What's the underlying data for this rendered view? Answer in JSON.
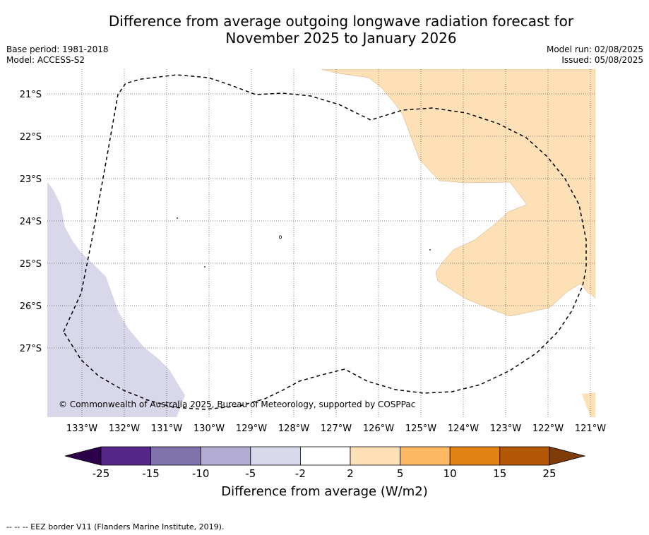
{
  "header": {
    "title_line1": "Difference from average outgoing longwave radiation forecast for",
    "title_line2": "November 2025 to January 2026",
    "base_period": "Base period: 1981-2018",
    "model": "Model: ACCESS-S2",
    "model_run": "Model run: 02/08/2025",
    "issued": "Issued: 05/08/2025"
  },
  "map": {
    "lon_labels": [
      "133°W",
      "132°W",
      "131°W",
      "130°W",
      "129°W",
      "128°W",
      "127°W",
      "126°W",
      "125°W",
      "124°W",
      "123°W",
      "122°W",
      "121°W"
    ],
    "lat_labels": [
      "21°S",
      "22°S",
      "23°S",
      "24°S",
      "25°S",
      "26°S",
      "27°S"
    ],
    "copyright": "© Commonwealth of Australia 2025, Bureau of Meteorology, supported by COSPPac",
    "colors": {
      "pale_purple": "#d8d8ea",
      "pale_orange": "#fee0b6",
      "border": "#000000",
      "grid": "#555555"
    }
  },
  "colorbar": {
    "title": "Difference from average (W/m2)",
    "tick_labels": [
      "-25",
      "-15",
      "-10",
      "-5",
      "-2",
      "2",
      "5",
      "10",
      "15",
      "25"
    ],
    "colors": [
      "#2d004b",
      "#542788",
      "#8073ac",
      "#b2abd2",
      "#d8daeb",
      "#ffffff",
      "#fee0b6",
      "#fdb863",
      "#e08214",
      "#b35806",
      "#7f3b08"
    ]
  },
  "footnote": "--  --  -- EEZ border V11 (Flanders Marine Institute, 2019)."
}
